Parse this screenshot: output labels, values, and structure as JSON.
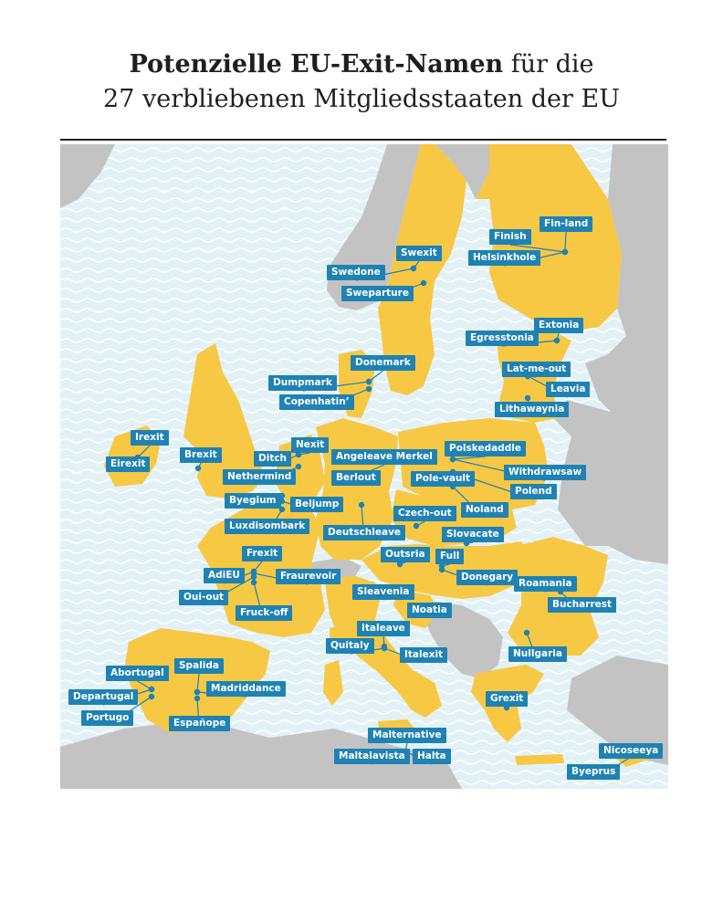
{
  "title": {
    "bold": "Potenzielle EU-Exit-Namen",
    "rest": " für die",
    "line2": "27 verbliebenen Mitgliedsstaaten der EU"
  },
  "colors": {
    "eu": "#f7c843",
    "non_eu": "#c4c3c4",
    "sea": "#e2f1f6",
    "label_bg": "#1f82b3",
    "label_text": "#ffffff"
  },
  "labels": [
    {
      "id": "fin-land",
      "text": "Fin-land"
    },
    {
      "id": "finish",
      "text": "Finish"
    },
    {
      "id": "helsinkhole",
      "text": "Helsinkhole"
    },
    {
      "id": "swexit",
      "text": "Swexit"
    },
    {
      "id": "swedone",
      "text": "Swedone"
    },
    {
      "id": "sweparture",
      "text": "Sweparture"
    },
    {
      "id": "extonia",
      "text": "Extonia"
    },
    {
      "id": "egresstonia",
      "text": "Egresstonia"
    },
    {
      "id": "lat-me-out",
      "text": "Lat-me-out"
    },
    {
      "id": "leavia",
      "text": "Leavia"
    },
    {
      "id": "lithawaynia",
      "text": "Lithawaynia"
    },
    {
      "id": "donemark",
      "text": "Donemark"
    },
    {
      "id": "dumpmark",
      "text": "Dumpmark"
    },
    {
      "id": "copenhatin",
      "text": "Copenhatin’"
    },
    {
      "id": "irexit",
      "text": "Irexit"
    },
    {
      "id": "eirexit",
      "text": "Eirexit"
    },
    {
      "id": "brexit",
      "text": "Brexit"
    },
    {
      "id": "nexit",
      "text": "Nexit"
    },
    {
      "id": "ditch",
      "text": "Ditch"
    },
    {
      "id": "nethermind",
      "text": "Nethermind"
    },
    {
      "id": "angeleave-merkel",
      "text": "Angeleave Merkel"
    },
    {
      "id": "berlout",
      "text": "Berlout"
    },
    {
      "id": "polskedaddle",
      "text": "Polskedaddle"
    },
    {
      "id": "withdrawsaw",
      "text": "Withdrawsaw"
    },
    {
      "id": "pole-vault",
      "text": "Pole-vault"
    },
    {
      "id": "polend",
      "text": "Polend"
    },
    {
      "id": "noland",
      "text": "Noland"
    },
    {
      "id": "byegium",
      "text": "Byegium"
    },
    {
      "id": "beljump",
      "text": "Beljump"
    },
    {
      "id": "luxdisombark",
      "text": "Luxdisombark"
    },
    {
      "id": "deutschleave",
      "text": "Deutschleave"
    },
    {
      "id": "czech-out",
      "text": "Czech-out"
    },
    {
      "id": "slovacate",
      "text": "Slovacate"
    },
    {
      "id": "frexit",
      "text": "Frexit"
    },
    {
      "id": "adieu",
      "text": "AdiEU"
    },
    {
      "id": "fraurevoir",
      "text": "Fraurevoir"
    },
    {
      "id": "oui-out",
      "text": "Oui-out"
    },
    {
      "id": "fruck-off",
      "text": "Fruck-off"
    },
    {
      "id": "outsria",
      "text": "Outsria"
    },
    {
      "id": "full",
      "text": "Full"
    },
    {
      "id": "donegary",
      "text": "Donegary"
    },
    {
      "id": "roamania",
      "text": "Roamania"
    },
    {
      "id": "bucharrest",
      "text": "Bucharrest"
    },
    {
      "id": "sleavenia",
      "text": "Sleavenia"
    },
    {
      "id": "noatia",
      "text": "Noatia"
    },
    {
      "id": "italeave",
      "text": "Italeave"
    },
    {
      "id": "quitaly",
      "text": "Quitaly"
    },
    {
      "id": "italexit",
      "text": "Italexit"
    },
    {
      "id": "nullgaria",
      "text": "Nullgaria"
    },
    {
      "id": "abortugal",
      "text": "Abortugal"
    },
    {
      "id": "departugal",
      "text": "Departugal"
    },
    {
      "id": "portugo",
      "text": "Portugo"
    },
    {
      "id": "spalida",
      "text": "Spalida"
    },
    {
      "id": "madriddance",
      "text": "Madriddance"
    },
    {
      "id": "espanope",
      "text": "Españope"
    },
    {
      "id": "grexit",
      "text": "Grexit"
    },
    {
      "id": "malternative",
      "text": "Malternative"
    },
    {
      "id": "maltalavista",
      "text": "Maltalavista"
    },
    {
      "id": "halta",
      "text": "Halta"
    },
    {
      "id": "nicoseeya",
      "text": "Nicoseeya"
    },
    {
      "id": "byeprus",
      "text": "Byeprus"
    }
  ]
}
